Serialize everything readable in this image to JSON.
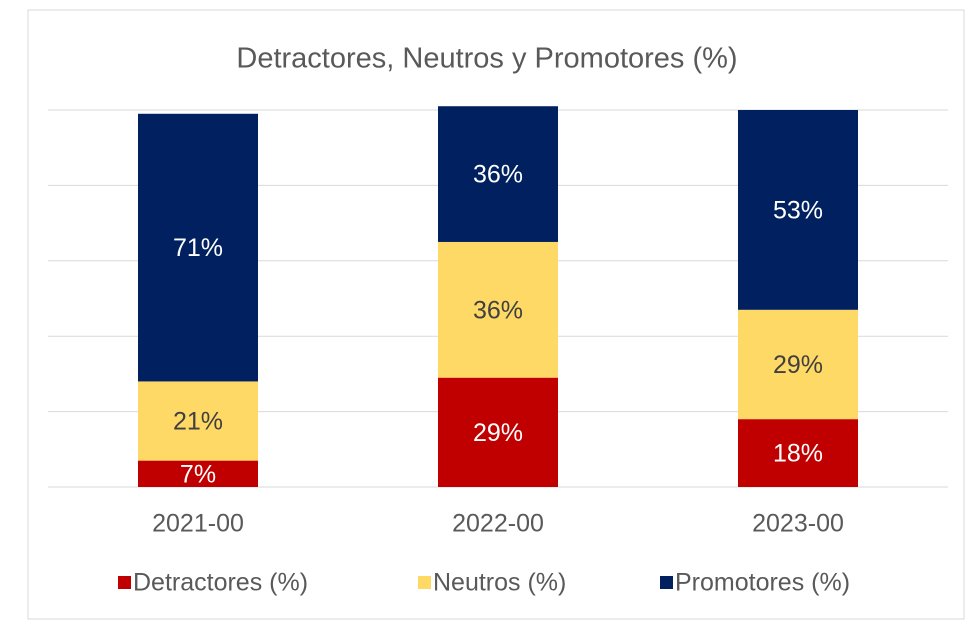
{
  "chart_data": {
    "type": "bar",
    "stacked": true,
    "title": "Detractores, Neutros y Promotores (%)",
    "categories": [
      "2021-00",
      "2022-00",
      "2023-00"
    ],
    "series": [
      {
        "name": "Detractores (%)",
        "color": "#c00000",
        "values": [
          7,
          29,
          18
        ],
        "value_labels": [
          "7%",
          "29%",
          "18%"
        ]
      },
      {
        "name": "Neutros (%)",
        "color": "#ffd966",
        "values": [
          21,
          36,
          29
        ],
        "value_labels": [
          "21%",
          "36%",
          "29%"
        ]
      },
      {
        "name": "Promotores (%)",
        "color": "#002060",
        "values": [
          71,
          36,
          53
        ],
        "value_labels": [
          "71%",
          "36%",
          "53%"
        ]
      }
    ],
    "ylim": [
      0,
      100
    ],
    "yticks": [
      0,
      20,
      40,
      60,
      80,
      100
    ],
    "grid": true,
    "legend": "bottom"
  }
}
